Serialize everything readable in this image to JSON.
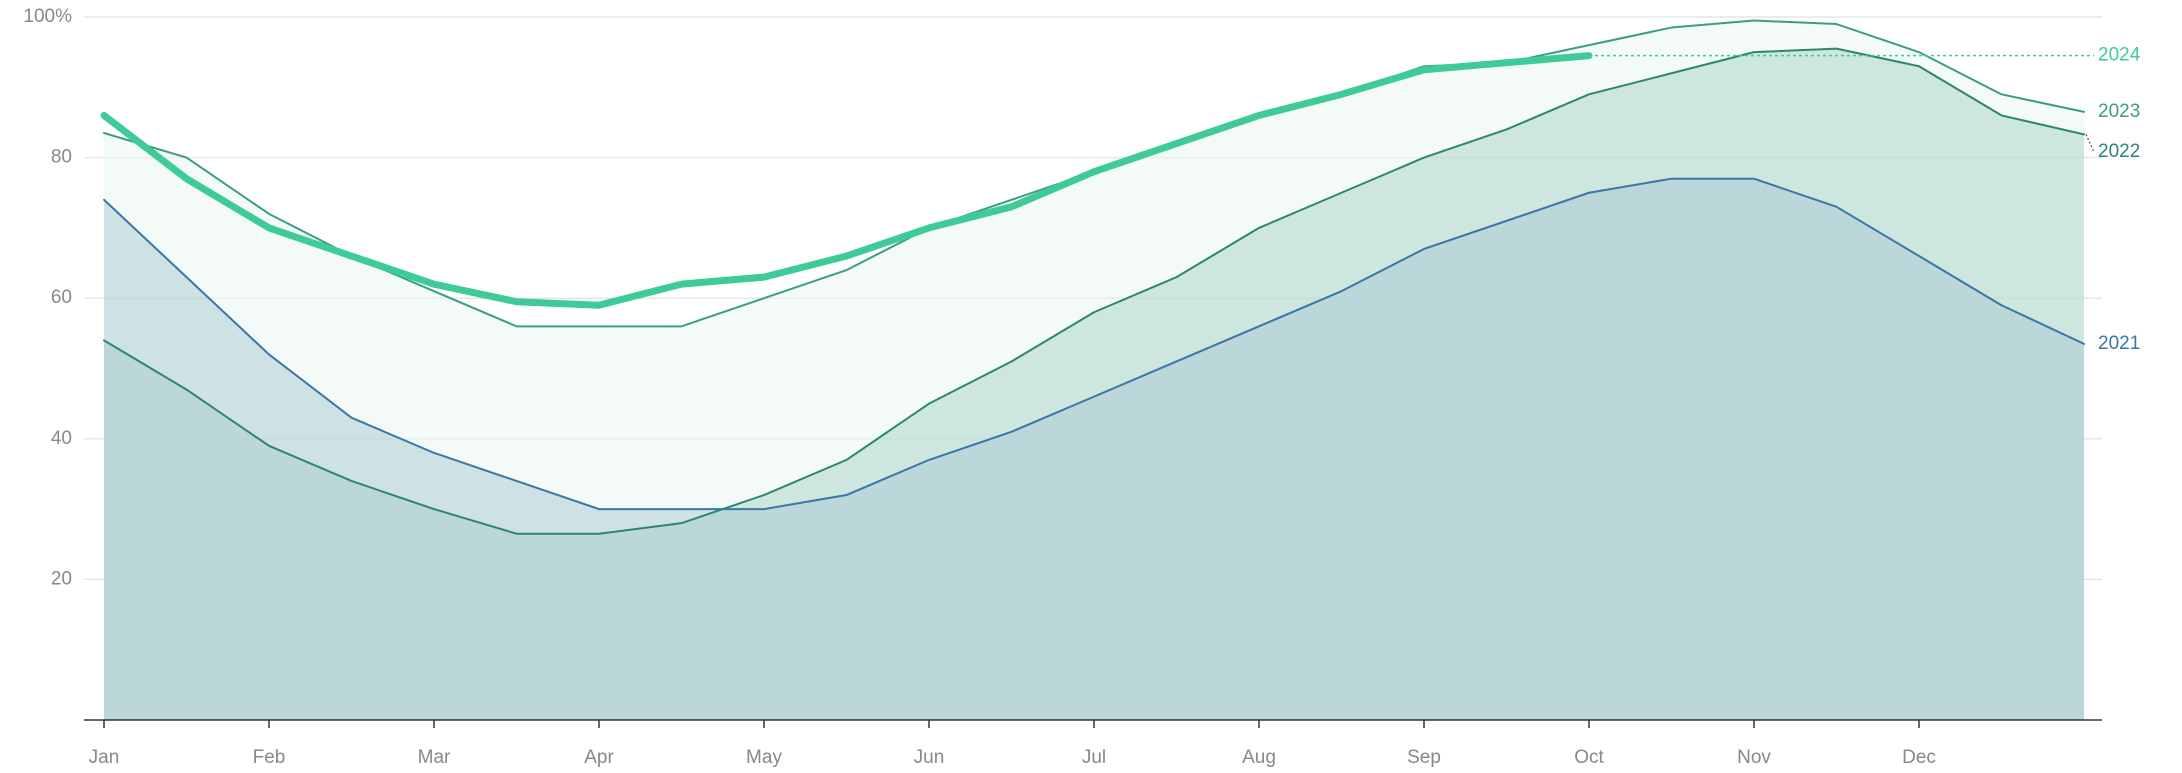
{
  "chart_data": {
    "type": "area",
    "categories": [
      "Jan",
      null,
      "Feb",
      null,
      "Mar",
      null,
      "Apr",
      null,
      "May",
      null,
      "Jun",
      null,
      "Jul",
      null,
      "Aug",
      null,
      "Sep",
      null,
      "Oct",
      null,
      "Nov",
      null,
      "Dec",
      null,
      null
    ],
    "series": [
      {
        "name": "2021",
        "color": "#3a76a8",
        "fill": "#a9c8d3",
        "values": [
          74,
          63,
          52,
          43,
          38,
          34,
          30,
          30,
          30,
          32,
          37,
          41,
          46,
          51,
          56,
          61,
          67,
          71,
          75,
          77,
          77,
          73,
          66,
          59,
          53.5
        ]
      },
      {
        "name": "2022",
        "color": "#2e8577",
        "fill": "#a8d2c5",
        "values": [
          54,
          47,
          39,
          34,
          30,
          26.5,
          26.5,
          28,
          32,
          37,
          45,
          51,
          58,
          63,
          70,
          75,
          80,
          84,
          89,
          92,
          95,
          95.5,
          93,
          86,
          83.3
        ]
      },
      {
        "name": "2023",
        "color": "#3c9c86",
        "fill": "#e8f6ef",
        "values": [
          83.5,
          80,
          72,
          66,
          61,
          56,
          56,
          56,
          60,
          64,
          70,
          74,
          78,
          82,
          86,
          89,
          93,
          93.5,
          96,
          98.5,
          99.5,
          99,
          95,
          89,
          86.5
        ]
      },
      {
        "name": "2024",
        "color": "#3fcb95",
        "values": [
          86,
          77,
          70,
          66,
          62,
          59.5,
          59,
          62,
          63,
          66,
          70,
          73,
          78,
          82,
          86,
          89,
          92.5,
          93.5,
          94.5,
          null,
          null,
          null,
          null,
          null,
          null
        ]
      }
    ],
    "ylim": [
      0,
      100
    ],
    "yticks": [
      20,
      40,
      60,
      80,
      {
        "value": 100,
        "label": "100%"
      }
    ],
    "grid": true
  }
}
